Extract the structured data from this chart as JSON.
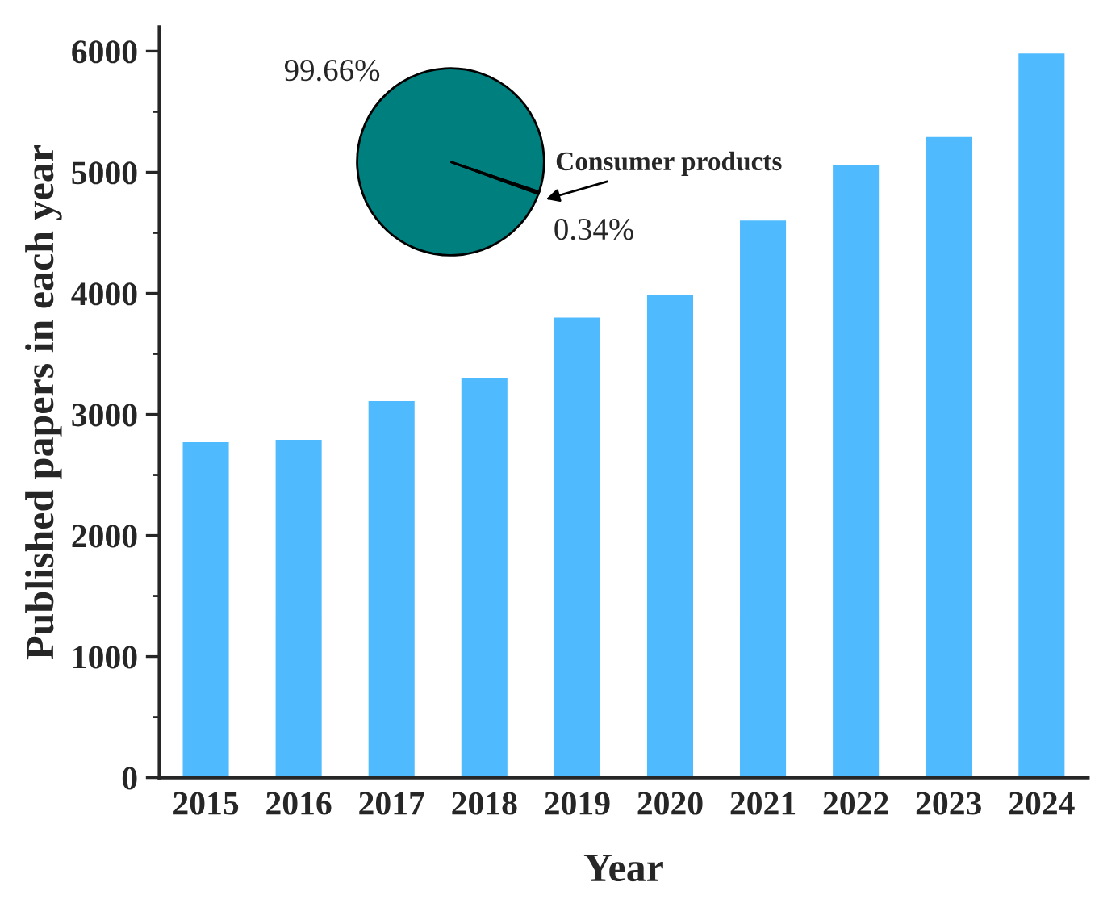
{
  "chart_data": [
    {
      "type": "bar",
      "xlabel": "Year",
      "ylabel": "Published papers in each year",
      "categories": [
        "2015",
        "2016",
        "2017",
        "2018",
        "2019",
        "2020",
        "2021",
        "2022",
        "2023",
        "2024"
      ],
      "values": [
        2780,
        2800,
        3120,
        3310,
        3810,
        4000,
        4610,
        5070,
        5300,
        5990
      ],
      "color": "#4fbafe",
      "ylim": [
        0,
        6200
      ],
      "yticks": [
        0,
        1000,
        2000,
        3000,
        4000,
        5000,
        6000
      ],
      "grid": false,
      "legend": false
    },
    {
      "type": "pie",
      "categories": [
        null,
        "Consumer products"
      ],
      "values": [
        99.66,
        0.34
      ],
      "colors": [
        "#007f7f",
        "#007f7f"
      ],
      "value_labels": [
        "99.66%",
        "0.34%"
      ],
      "legend": false
    }
  ]
}
